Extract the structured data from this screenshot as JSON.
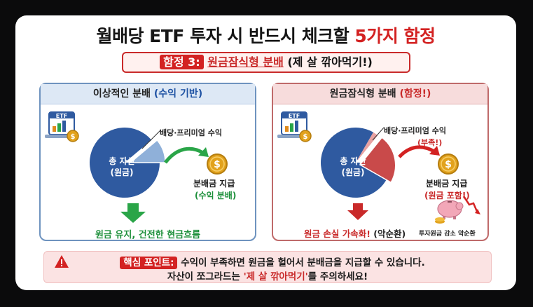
{
  "header": {
    "title_main": "월배당 ETF 투자 시 반드시 체크할",
    "title_highlight": "5가지 함정"
  },
  "subtitle": {
    "tag": "함정 3:",
    "highlight": "원금잠식형 분배",
    "rest": "(제 살 깎아먹기!)"
  },
  "left_panel": {
    "title_main": "이상적인 분배",
    "title_paren": "(수익 기반)",
    "etf_icon_text": "ETF",
    "pie_label_line1": "총 자산",
    "pie_label_line2": "(원금)",
    "slice_label": "배당·프리미엄 수익",
    "payout_label": "분배금 지급",
    "payout_sub": "(수익 분배)",
    "result": "원금 유지, 건전한 현금흐름"
  },
  "right_panel": {
    "title_main": "원금잠식형 분배",
    "title_paren": "(함정!)",
    "etf_icon_text": "ETF",
    "pie_label_line1": "총 자산",
    "pie_label_line2": "(원금)",
    "slice_label": "배당·프리미엄 수익",
    "slice_sub": "(부족!)",
    "payout_label": "분배금 지급",
    "payout_sub": "(원금 포함!)",
    "result_red": "원금 손실 가속화!",
    "result_black": "(악순환)",
    "piggy_caption": "투자원금 감소 악순환"
  },
  "bottom": {
    "tag": "핵심 포인트:",
    "line1": "수익이 부족하면 원금을 헐어서 분배금을 지급할 수 있습니다.",
    "line2_a": "자산이 쪼그라드는",
    "line2_highlight": "'제 살 깎아먹기'",
    "line2_b": "를 주의하세요!"
  },
  "colors": {
    "accent_red": "#d32222",
    "pie_blue": "#2f5aa0",
    "slice_light_blue": "#8fb0d9",
    "loss_red": "#c94a4a",
    "green_arrow": "#2aa548",
    "coin_gold": "#e2a21c"
  }
}
